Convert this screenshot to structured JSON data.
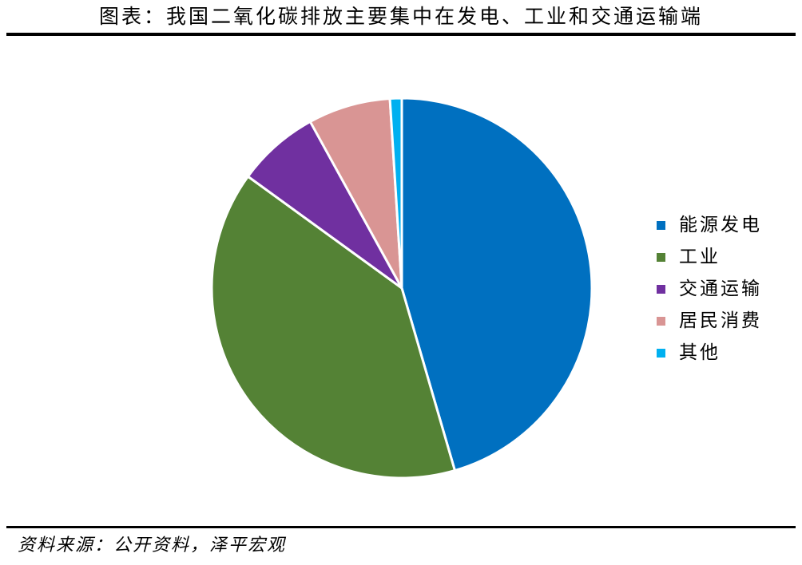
{
  "header": {
    "title": "图表：我国二氧化碳排放主要集中在发电、工业和交通运输端"
  },
  "footer": {
    "source": "资料来源：公开资料，泽平宏观"
  },
  "chart_data": {
    "type": "pie",
    "title": "",
    "legend_position": "right",
    "slices": [
      {
        "name": "能源发电",
        "value": 45.5,
        "color": "#0070C0"
      },
      {
        "name": "工业",
        "value": 39.5,
        "color": "#548235"
      },
      {
        "name": "交通运输",
        "value": 7.0,
        "color": "#7030A0"
      },
      {
        "name": "居民消费",
        "value": 7.0,
        "color": "#D99594"
      },
      {
        "name": "其他",
        "value": 1.0,
        "color": "#00B0F0"
      }
    ]
  }
}
